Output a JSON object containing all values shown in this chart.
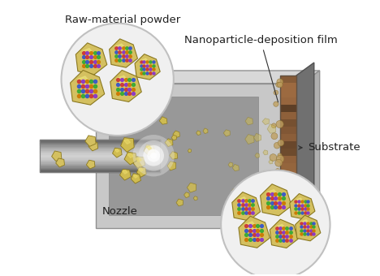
{
  "bg_color": "#ffffff",
  "labels": {
    "raw_material": "Raw-material powder",
    "nanoparticle": "Nanoparticle-deposition film",
    "nozzle": "Nozzle",
    "substrate": "Substrate"
  },
  "colors": {
    "chamber_face": "#c8c8c8",
    "chamber_top": "#d8d8d8",
    "chamber_right": "#b0b0b0",
    "chamber_inner": "#989898",
    "chamber_edge": "#909090",
    "nozzle_tube": "#b8b8b8",
    "substrate_brown": "#a07050",
    "substrate_dark": "#707070",
    "particle_gold": "#d4c060",
    "particle_edge": "#8a7820",
    "particle_highlight": "#f0e880",
    "circle_bg": "#f0f0f0",
    "circle_edge": "#c0c0c0",
    "text_color": "#202020",
    "line_color": "#a0a0a0"
  },
  "font_sizes": {
    "label": 9.5
  },
  "dot_colors": [
    "#cc3333",
    "#3355cc",
    "#33aa33",
    "#cc7700",
    "#8833cc"
  ]
}
